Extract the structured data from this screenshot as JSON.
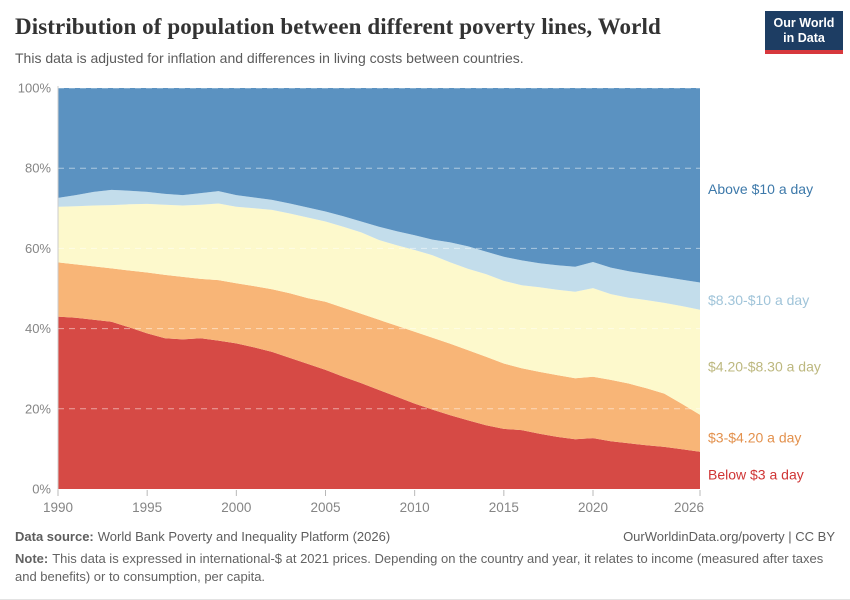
{
  "header": {
    "title": "Distribution of population between different poverty lines, World",
    "subtitle": "This data is adjusted for inflation and differences in living costs between countries.",
    "logo": {
      "line1": "Our World",
      "line2": "in Data",
      "bg_color": "#1d3d63",
      "accent_color": "#d7383d"
    }
  },
  "chart_data": {
    "type": "area",
    "stacked": true,
    "unit": "%",
    "grid": "dashed",
    "legend_position": "right",
    "ylim": [
      0,
      100
    ],
    "yticks": [
      0,
      20,
      40,
      60,
      80,
      100
    ],
    "xticks": [
      1990,
      1995,
      2000,
      2005,
      2010,
      2015,
      2020,
      2026
    ],
    "x": [
      1990,
      1991,
      1992,
      1993,
      1994,
      1995,
      1996,
      1997,
      1998,
      1999,
      2000,
      2001,
      2002,
      2003,
      2004,
      2005,
      2006,
      2007,
      2008,
      2009,
      2010,
      2011,
      2012,
      2013,
      2014,
      2015,
      2016,
      2017,
      2018,
      2019,
      2020,
      2021,
      2022,
      2023,
      2024,
      2025,
      2026
    ],
    "series": [
      {
        "name": "Below $3 a day",
        "color": "#d64a45",
        "label_color": "#cf3535",
        "values": [
          43.0,
          42.7,
          42.2,
          41.7,
          40.3,
          38.8,
          37.6,
          37.3,
          37.6,
          37.0,
          36.3,
          35.3,
          34.2,
          32.7,
          31.2,
          29.7,
          28.0,
          26.4,
          24.7,
          23.0,
          21.3,
          19.8,
          18.4,
          17.1,
          15.9,
          15.0,
          14.7,
          13.8,
          13.0,
          12.4,
          12.7,
          11.9,
          11.4,
          10.9,
          10.5,
          9.9,
          9.3
        ]
      },
      {
        "name": "$3-$4.20 a day",
        "color": "#f8b577",
        "label_color": "#e3914d",
        "values": [
          13.5,
          13.3,
          13.3,
          13.3,
          14.2,
          15.2,
          15.8,
          15.6,
          14.8,
          15.1,
          15.0,
          15.3,
          15.6,
          16.1,
          16.4,
          17.0,
          17.2,
          17.3,
          17.5,
          17.7,
          17.9,
          17.9,
          17.8,
          17.5,
          17.1,
          16.3,
          15.4,
          15.4,
          15.4,
          15.2,
          15.3,
          15.3,
          14.9,
          14.2,
          13.3,
          11.3,
          9.2
        ]
      },
      {
        "name": "$4.20-$8.30 a day",
        "color": "#fdf9cc",
        "label_color": "#bdb87f",
        "values": [
          13.9,
          14.5,
          15.2,
          15.8,
          16.5,
          17.1,
          17.5,
          17.8,
          18.5,
          19.1,
          19.1,
          19.4,
          19.8,
          19.9,
          20.1,
          20.0,
          20.2,
          20.3,
          19.9,
          20.1,
          20.4,
          20.6,
          20.3,
          20.3,
          20.6,
          20.6,
          20.7,
          21.1,
          21.3,
          21.6,
          22.1,
          21.4,
          21.4,
          22.0,
          22.6,
          24.4,
          26.2
        ]
      },
      {
        "name": "$8.30-$10 a day",
        "color": "#c3ddeb",
        "label_color": "#a0c4d9",
        "values": [
          2.2,
          2.8,
          3.4,
          3.8,
          3.4,
          3.0,
          2.7,
          2.6,
          2.9,
          3.1,
          2.9,
          2.7,
          2.5,
          2.5,
          2.5,
          2.5,
          2.6,
          2.7,
          3.3,
          3.5,
          3.7,
          3.9,
          5.0,
          5.6,
          5.6,
          6.0,
          6.2,
          6.0,
          6.1,
          6.2,
          6.5,
          6.6,
          6.6,
          6.5,
          6.5,
          6.6,
          6.8
        ]
      },
      {
        "name": "Above $10 a day",
        "color": "#5b92c1",
        "label_color": "#3d79aa",
        "values": [
          27.4,
          26.7,
          25.9,
          25.4,
          25.6,
          25.9,
          26.4,
          26.7,
          26.2,
          25.7,
          26.7,
          27.3,
          27.9,
          28.8,
          29.8,
          30.8,
          32.0,
          33.3,
          34.6,
          35.7,
          36.7,
          37.8,
          38.5,
          39.5,
          40.8,
          42.1,
          43.0,
          43.7,
          44.2,
          44.6,
          43.4,
          44.8,
          45.7,
          46.4,
          47.1,
          47.8,
          48.5
        ]
      }
    ]
  },
  "footer": {
    "datasource_label": "Data source:",
    "datasource_value": "World Bank Poverty and Inequality Platform (2026)",
    "link": "OurWorldinData.org/poverty | CC BY",
    "note_label": "Note:",
    "note_value": "This data is expressed in international-$ at 2021 prices. Depending on the country and year, it relates to income (measured after taxes and benefits) or to consumption, per capita."
  }
}
